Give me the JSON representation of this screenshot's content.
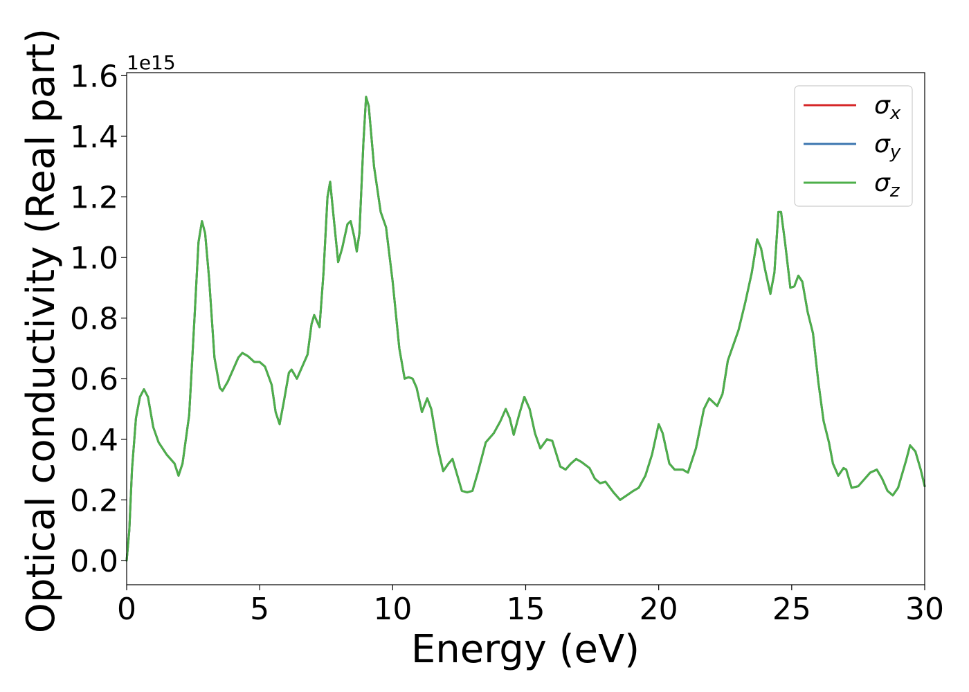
{
  "chart_data": {
    "type": "line",
    "title": "",
    "xlabel": "Energy (eV)",
    "ylabel": "Optical conductivity (Real part)",
    "y_offset_label": "1e15",
    "xlim": [
      0,
      30
    ],
    "ylim": [
      -0.08,
      1.61
    ],
    "xticks": [
      0,
      5,
      10,
      15,
      20,
      25,
      30
    ],
    "yticks": [
      0.0,
      0.2,
      0.4,
      0.6,
      0.8,
      1.0,
      1.2,
      1.4,
      1.6
    ],
    "ytick_labels": [
      "0.0",
      "0.2",
      "0.4",
      "0.6",
      "0.8",
      "1.0",
      "1.2",
      "1.4",
      "1.6"
    ],
    "grid": false,
    "legend_position": "upper right",
    "series": [
      {
        "name": "σ_x",
        "label_base": "σ",
        "label_sub": "x",
        "color": "#d62728"
      },
      {
        "name": "σ_y",
        "label_base": "σ",
        "label_sub": "y",
        "color": "#3b75af"
      },
      {
        "name": "σ_z",
        "label_base": "σ",
        "label_sub": "z",
        "color": "#4daf4a"
      }
    ],
    "note_series_identical": true,
    "points": [
      [
        0.0,
        0.0
      ],
      [
        0.1,
        0.1
      ],
      [
        0.2,
        0.3
      ],
      [
        0.35,
        0.47
      ],
      [
        0.5,
        0.54
      ],
      [
        0.65,
        0.565
      ],
      [
        0.8,
        0.54
      ],
      [
        1.0,
        0.44
      ],
      [
        1.2,
        0.39
      ],
      [
        1.5,
        0.35
      ],
      [
        1.8,
        0.32
      ],
      [
        1.95,
        0.28
      ],
      [
        2.1,
        0.32
      ],
      [
        2.35,
        0.48
      ],
      [
        2.55,
        0.8
      ],
      [
        2.7,
        1.05
      ],
      [
        2.83,
        1.12
      ],
      [
        2.95,
        1.08
      ],
      [
        3.1,
        0.93
      ],
      [
        3.3,
        0.67
      ],
      [
        3.5,
        0.57
      ],
      [
        3.6,
        0.56
      ],
      [
        3.8,
        0.59
      ],
      [
        4.0,
        0.63
      ],
      [
        4.2,
        0.67
      ],
      [
        4.35,
        0.685
      ],
      [
        4.55,
        0.675
      ],
      [
        4.8,
        0.655
      ],
      [
        5.0,
        0.655
      ],
      [
        5.2,
        0.64
      ],
      [
        5.45,
        0.58
      ],
      [
        5.6,
        0.49
      ],
      [
        5.75,
        0.45
      ],
      [
        5.9,
        0.52
      ],
      [
        6.1,
        0.62
      ],
      [
        6.2,
        0.63
      ],
      [
        6.4,
        0.6
      ],
      [
        6.6,
        0.64
      ],
      [
        6.8,
        0.68
      ],
      [
        6.95,
        0.78
      ],
      [
        7.05,
        0.81
      ],
      [
        7.15,
        0.79
      ],
      [
        7.25,
        0.77
      ],
      [
        7.4,
        0.95
      ],
      [
        7.55,
        1.2
      ],
      [
        7.65,
        1.25
      ],
      [
        7.75,
        1.16
      ],
      [
        7.95,
        0.985
      ],
      [
        8.1,
        1.03
      ],
      [
        8.3,
        1.11
      ],
      [
        8.42,
        1.12
      ],
      [
        8.55,
        1.07
      ],
      [
        8.65,
        1.02
      ],
      [
        8.75,
        1.08
      ],
      [
        8.9,
        1.38
      ],
      [
        9.0,
        1.53
      ],
      [
        9.1,
        1.5
      ],
      [
        9.3,
        1.3
      ],
      [
        9.55,
        1.15
      ],
      [
        9.75,
        1.1
      ],
      [
        10.0,
        0.92
      ],
      [
        10.25,
        0.7
      ],
      [
        10.45,
        0.6
      ],
      [
        10.6,
        0.605
      ],
      [
        10.75,
        0.6
      ],
      [
        10.9,
        0.57
      ],
      [
        11.1,
        0.49
      ],
      [
        11.3,
        0.535
      ],
      [
        11.45,
        0.5
      ],
      [
        11.7,
        0.37
      ],
      [
        11.9,
        0.295
      ],
      [
        12.1,
        0.32
      ],
      [
        12.25,
        0.335
      ],
      [
        12.4,
        0.29
      ],
      [
        12.6,
        0.23
      ],
      [
        12.8,
        0.225
      ],
      [
        13.0,
        0.23
      ],
      [
        13.2,
        0.29
      ],
      [
        13.5,
        0.39
      ],
      [
        13.8,
        0.42
      ],
      [
        14.05,
        0.46
      ],
      [
        14.25,
        0.5
      ],
      [
        14.4,
        0.47
      ],
      [
        14.55,
        0.415
      ],
      [
        14.75,
        0.48
      ],
      [
        14.95,
        0.54
      ],
      [
        15.15,
        0.5
      ],
      [
        15.35,
        0.42
      ],
      [
        15.55,
        0.37
      ],
      [
        15.8,
        0.4
      ],
      [
        16.0,
        0.395
      ],
      [
        16.3,
        0.31
      ],
      [
        16.5,
        0.3
      ],
      [
        16.7,
        0.32
      ],
      [
        16.9,
        0.335
      ],
      [
        17.1,
        0.325
      ],
      [
        17.4,
        0.305
      ],
      [
        17.6,
        0.27
      ],
      [
        17.8,
        0.255
      ],
      [
        18.0,
        0.26
      ],
      [
        18.3,
        0.225
      ],
      [
        18.55,
        0.2
      ],
      [
        18.8,
        0.215
      ],
      [
        19.05,
        0.23
      ],
      [
        19.25,
        0.24
      ],
      [
        19.5,
        0.28
      ],
      [
        19.75,
        0.35
      ],
      [
        20.0,
        0.45
      ],
      [
        20.15,
        0.42
      ],
      [
        20.4,
        0.32
      ],
      [
        20.6,
        0.3
      ],
      [
        20.9,
        0.3
      ],
      [
        21.1,
        0.29
      ],
      [
        21.4,
        0.37
      ],
      [
        21.7,
        0.5
      ],
      [
        21.9,
        0.535
      ],
      [
        22.2,
        0.51
      ],
      [
        22.4,
        0.55
      ],
      [
        22.6,
        0.66
      ],
      [
        22.8,
        0.71
      ],
      [
        23.0,
        0.76
      ],
      [
        23.25,
        0.85
      ],
      [
        23.5,
        0.95
      ],
      [
        23.7,
        1.06
      ],
      [
        23.85,
        1.03
      ],
      [
        24.0,
        0.96
      ],
      [
        24.2,
        0.88
      ],
      [
        24.35,
        0.95
      ],
      [
        24.5,
        1.15
      ],
      [
        24.6,
        1.15
      ],
      [
        24.75,
        1.05
      ],
      [
        24.95,
        0.9
      ],
      [
        25.1,
        0.905
      ],
      [
        25.25,
        0.94
      ],
      [
        25.4,
        0.92
      ],
      [
        25.6,
        0.82
      ],
      [
        25.8,
        0.75
      ],
      [
        26.0,
        0.59
      ],
      [
        26.2,
        0.46
      ],
      [
        26.4,
        0.39
      ],
      [
        26.55,
        0.32
      ],
      [
        26.75,
        0.28
      ],
      [
        26.95,
        0.305
      ],
      [
        27.05,
        0.3
      ],
      [
        27.25,
        0.24
      ],
      [
        27.5,
        0.245
      ],
      [
        27.7,
        0.265
      ],
      [
        27.95,
        0.29
      ],
      [
        28.2,
        0.3
      ],
      [
        28.4,
        0.27
      ],
      [
        28.6,
        0.23
      ],
      [
        28.8,
        0.215
      ],
      [
        29.0,
        0.24
      ],
      [
        29.3,
        0.33
      ],
      [
        29.45,
        0.38
      ],
      [
        29.65,
        0.36
      ],
      [
        29.85,
        0.3
      ],
      [
        30.0,
        0.245
      ]
    ]
  }
}
